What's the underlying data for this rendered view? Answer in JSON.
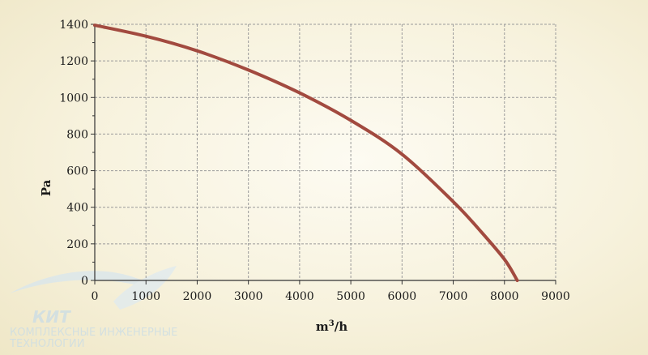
{
  "chart_data": {
    "type": "line",
    "xlabel": "m³/h",
    "ylabel": "Pa",
    "xlim": [
      0,
      9000
    ],
    "ylim": [
      0,
      1400
    ],
    "x_ticks": [
      0,
      1000,
      2000,
      3000,
      4000,
      5000,
      6000,
      7000,
      8000,
      9000
    ],
    "y_ticks": [
      0,
      200,
      400,
      600,
      800,
      1000,
      1200,
      1400
    ],
    "grid": true,
    "series": [
      {
        "color": "#a24a3f",
        "x": [
          0,
          1000,
          2000,
          3000,
          4000,
          5000,
          6000,
          7000,
          7500,
          8000,
          8250
        ],
        "y": [
          1395,
          1335,
          1255,
          1150,
          1025,
          875,
          690,
          430,
          280,
          115,
          0
        ]
      }
    ]
  },
  "watermark": {
    "name": "КИТ",
    "subtitle_line1": "КОМПЛЕКСНЫЕ ИНЖЕНЕРНЫЕ",
    "subtitle_line2": "ТЕХНОЛОГИИ"
  }
}
